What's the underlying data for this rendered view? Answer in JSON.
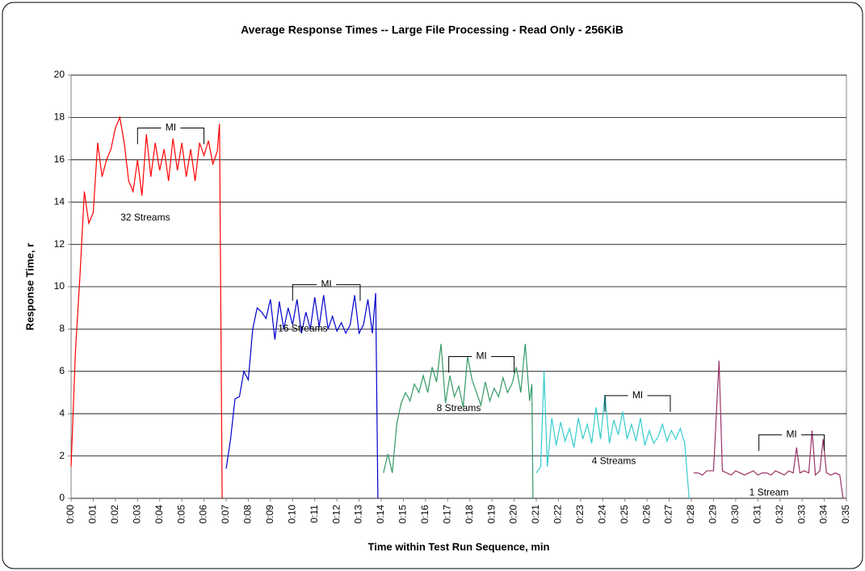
{
  "chart_data": {
    "type": "line",
    "title": "Average Response Times -- Large File Processing - Read Only - 256KiB",
    "x_label": "Time within Test Run Sequence, min",
    "y_label": "Response Time, r",
    "xlim": [
      0,
      35
    ],
    "ylim": [
      0,
      20
    ],
    "grid": true,
    "yticks": [
      0,
      2,
      4,
      6,
      8,
      10,
      12,
      14,
      16,
      18,
      20
    ],
    "xticks": [
      {
        "value": 0,
        "label": "0:00"
      },
      {
        "value": 1,
        "label": "0:01"
      },
      {
        "value": 2,
        "label": "0:02"
      },
      {
        "value": 3,
        "label": "0:03"
      },
      {
        "value": 4,
        "label": "0:04"
      },
      {
        "value": 5,
        "label": "0:05"
      },
      {
        "value": 6,
        "label": "0:06"
      },
      {
        "value": 7,
        "label": "0:07"
      },
      {
        "value": 8,
        "label": "0:08"
      },
      {
        "value": 9,
        "label": "0:09"
      },
      {
        "value": 10,
        "label": "0:10"
      },
      {
        "value": 11,
        "label": "0:11"
      },
      {
        "value": 12,
        "label": "0:12"
      },
      {
        "value": 13,
        "label": "0:13"
      },
      {
        "value": 14,
        "label": "0:14"
      },
      {
        "value": 15,
        "label": "0:15"
      },
      {
        "value": 16,
        "label": "0:16"
      },
      {
        "value": 17,
        "label": "0:17"
      },
      {
        "value": 18,
        "label": "0:18"
      },
      {
        "value": 19,
        "label": "0:19"
      },
      {
        "value": 20,
        "label": "0:20"
      },
      {
        "value": 21,
        "label": "0:21"
      },
      {
        "value": 22,
        "label": "0:22"
      },
      {
        "value": 23,
        "label": "0:23"
      },
      {
        "value": 24,
        "label": "0:24"
      },
      {
        "value": 25,
        "label": "0:25"
      },
      {
        "value": 26,
        "label": "0:26"
      },
      {
        "value": 27,
        "label": "0:27"
      },
      {
        "value": 28,
        "label": "0:28"
      },
      {
        "value": 29,
        "label": "0:29"
      },
      {
        "value": 30,
        "label": "0:30"
      },
      {
        "value": 31,
        "label": "0:31"
      },
      {
        "value": 32,
        "label": "0:32"
      },
      {
        "value": 33,
        "label": "0:33"
      },
      {
        "value": 34,
        "label": "0:34"
      },
      {
        "value": 35,
        "label": "0:35"
      }
    ],
    "series": [
      {
        "color": "#ff0000",
        "x": [
          0,
          0.2,
          0.4,
          0.6,
          0.8,
          1.0,
          1.2,
          1.4,
          1.6,
          1.8,
          2.0,
          2.2,
          2.4,
          2.6,
          2.8,
          3.0,
          3.2,
          3.4,
          3.6,
          3.8,
          4.0,
          4.2,
          4.4,
          4.6,
          4.8,
          5.0,
          5.2,
          5.4,
          5.6,
          5.8,
          6.0,
          6.2,
          6.4,
          6.6,
          6.7,
          6.82
        ],
        "values": [
          1.5,
          7,
          10.5,
          14.5,
          13,
          13.5,
          16.8,
          15.2,
          16.0,
          16.5,
          17.5,
          18.0,
          16.8,
          15.0,
          14.5,
          16.0,
          14.3,
          17.2,
          15.2,
          16.8,
          15.5,
          16.5,
          15.0,
          17.0,
          15.5,
          16.8,
          15.2,
          16.5,
          15.0,
          16.8,
          16.2,
          16.9,
          15.8,
          16.4,
          17.7,
          0
        ]
      },
      {
        "color": "#0000cc",
        "x": [
          7.0,
          7.2,
          7.4,
          7.6,
          7.8,
          8.0,
          8.2,
          8.4,
          8.6,
          8.8,
          9.0,
          9.2,
          9.4,
          9.6,
          9.8,
          10.0,
          10.2,
          10.4,
          10.6,
          10.8,
          11.0,
          11.2,
          11.4,
          11.6,
          11.8,
          12.0,
          12.2,
          12.4,
          12.6,
          12.8,
          13.0,
          13.2,
          13.4,
          13.6,
          13.75,
          13.85
        ],
        "values": [
          1.4,
          2.8,
          4.7,
          4.8,
          6.0,
          5.6,
          8.0,
          9.0,
          8.8,
          8.5,
          9.4,
          7.5,
          9.3,
          8.0,
          9.0,
          8.2,
          9.4,
          7.8,
          8.8,
          8.0,
          9.5,
          8.1,
          9.6,
          8.0,
          8.6,
          7.9,
          8.3,
          7.8,
          8.2,
          9.6,
          7.8,
          8.2,
          9.4,
          7.8,
          9.7,
          0
        ]
      },
      {
        "color": "#339966",
        "x": [
          14.1,
          14.3,
          14.5,
          14.7,
          14.9,
          15.1,
          15.3,
          15.5,
          15.7,
          15.9,
          16.1,
          16.3,
          16.5,
          16.7,
          16.9,
          17.1,
          17.3,
          17.5,
          17.7,
          17.9,
          18.1,
          18.3,
          18.5,
          18.7,
          18.9,
          19.1,
          19.3,
          19.5,
          19.7,
          19.9,
          20.1,
          20.3,
          20.5,
          20.7,
          20.8,
          20.85
        ],
        "values": [
          1.2,
          2.1,
          1.2,
          3.5,
          4.5,
          5.0,
          4.6,
          5.4,
          5.0,
          5.8,
          5.0,
          6.2,
          5.5,
          7.3,
          4.5,
          5.8,
          4.8,
          5.3,
          4.3,
          6.7,
          5.6,
          5.0,
          4.4,
          5.5,
          4.6,
          5.2,
          4.8,
          5.7,
          5.0,
          5.4,
          6.2,
          5.0,
          7.3,
          4.6,
          5.4,
          0
        ]
      },
      {
        "color": "#33cccc",
        "x": [
          21.0,
          21.2,
          21.35,
          21.5,
          21.7,
          21.9,
          22.1,
          22.3,
          22.5,
          22.7,
          22.9,
          23.1,
          23.3,
          23.5,
          23.7,
          23.9,
          24.1,
          24.3,
          24.5,
          24.7,
          24.9,
          25.1,
          25.3,
          25.5,
          25.7,
          25.9,
          26.1,
          26.3,
          26.5,
          26.7,
          26.9,
          27.1,
          27.3,
          27.5,
          27.7,
          27.9
        ],
        "values": [
          1.2,
          1.5,
          6.0,
          1.5,
          3.8,
          2.5,
          3.6,
          2.7,
          3.3,
          2.4,
          3.8,
          2.8,
          3.5,
          2.6,
          4.3,
          2.8,
          4.9,
          2.6,
          3.7,
          3.0,
          4.1,
          2.8,
          3.5,
          2.7,
          3.8,
          2.5,
          3.2,
          2.6,
          2.9,
          3.5,
          2.7,
          3.2,
          2.8,
          3.3,
          2.6,
          0
        ]
      },
      {
        "color": "#993366",
        "x": [
          28.1,
          28.3,
          28.5,
          28.7,
          29.0,
          29.25,
          29.4,
          29.6,
          29.8,
          30.0,
          30.2,
          30.4,
          30.6,
          30.8,
          31.0,
          31.2,
          31.4,
          31.6,
          31.8,
          32.0,
          32.2,
          32.4,
          32.6,
          32.75,
          32.9,
          33.1,
          33.3,
          33.45,
          33.6,
          33.8,
          33.95,
          34.1,
          34.3,
          34.5,
          34.7,
          34.85
        ],
        "values": [
          1.2,
          1.2,
          1.1,
          1.3,
          1.3,
          6.5,
          1.3,
          1.2,
          1.1,
          1.3,
          1.2,
          1.1,
          1.2,
          1.3,
          1.1,
          1.2,
          1.2,
          1.1,
          1.3,
          1.2,
          1.1,
          1.3,
          1.2,
          2.4,
          1.2,
          1.3,
          1.2,
          3.2,
          1.1,
          1.3,
          2.8,
          1.2,
          1.1,
          1.2,
          1.1,
          0
        ]
      }
    ],
    "annotations": [
      {
        "text": "32 Streams",
        "x": 3.35,
        "y": 13.25
      },
      {
        "text": "16 Streams",
        "x": 10.46,
        "y": 8.0
      },
      {
        "text": "8 Streams",
        "x": 17.5,
        "y": 4.25
      },
      {
        "text": "4 Streams",
        "x": 24.5,
        "y": 1.75
      },
      {
        "text": "1 Stream",
        "x": 31.5,
        "y": 0.25
      }
    ],
    "intervals": [
      {
        "label": "MI",
        "start": 3.0,
        "end": 6.0,
        "y": 17.5
      },
      {
        "label": "MI",
        "start": 10.0,
        "end": 13.05,
        "y": 10.1
      },
      {
        "label": "MI",
        "start": 17.05,
        "end": 20.0,
        "y": 6.7
      },
      {
        "label": "MI",
        "start": 24.1,
        "end": 27.05,
        "y": 4.85
      },
      {
        "label": "MI",
        "start": 31.05,
        "end": 34.0,
        "y": 3.0
      }
    ]
  }
}
